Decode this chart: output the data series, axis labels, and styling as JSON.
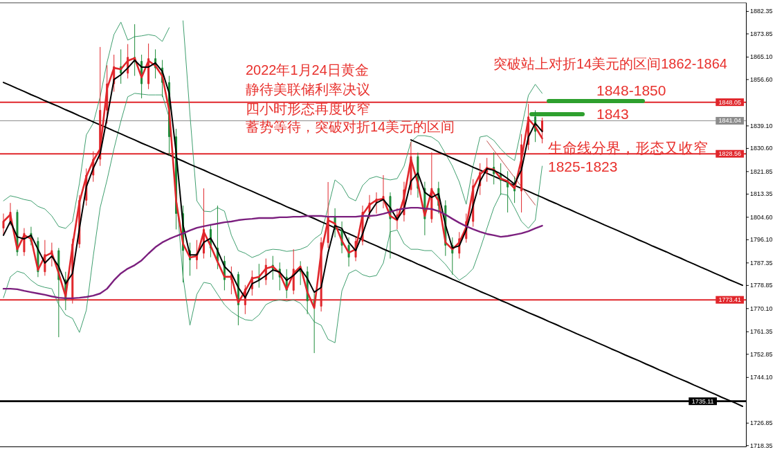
{
  "chart_data": {
    "type": "candlestick",
    "categories": [
      null,
      null,
      null,
      null,
      null,
      null,
      null,
      null,
      null,
      null,
      null,
      null,
      null,
      null,
      null,
      null,
      null,
      null,
      null,
      null,
      null,
      null,
      null,
      null,
      null,
      null,
      null,
      null,
      null,
      null,
      null,
      null,
      null,
      null,
      null,
      null,
      null,
      null,
      null,
      null,
      null,
      null,
      null,
      null,
      null,
      null,
      null,
      null,
      null,
      null,
      null,
      null,
      null,
      null,
      null,
      null,
      null,
      null,
      null,
      null,
      null,
      null,
      null,
      null,
      null,
      null,
      null,
      null,
      null,
      null,
      null,
      null,
      null,
      null,
      null,
      null,
      null,
      null,
      null,
      null,
      null,
      null,
      null,
      null,
      null,
      null,
      null,
      null,
      null,
      null,
      null,
      null,
      null,
      null,
      null,
      null,
      null,
      null,
      null,
      null,
      null,
      null,
      null,
      null,
      null,
      null,
      null,
      null
    ],
    "ohlc": [
      [
        1800.5,
        1806.0,
        1798.0,
        1803.0
      ],
      [
        1803.0,
        1810.0,
        1801.5,
        1806.5
      ],
      [
        1806.5,
        1807.5,
        1790.0,
        1791.5
      ],
      [
        1791.5,
        1800.5,
        1790.0,
        1798.5
      ],
      [
        1798.5,
        1801.0,
        1794.0,
        1795.5
      ],
      [
        1795.5,
        1797.0,
        1782.0,
        1784.0
      ],
      [
        1784.0,
        1796.0,
        1782.5,
        1790.5
      ],
      [
        1790.5,
        1795.0,
        1786.0,
        1792.0
      ],
      [
        1792.0,
        1793.0,
        1759.3,
        1781.0
      ],
      [
        1781.0,
        1784.0,
        1769.5,
        1773.5
      ],
      [
        1773.5,
        1796.5,
        1772.0,
        1794.5
      ],
      [
        1794.5,
        1813.0,
        1793.0,
        1811.0
      ],
      [
        1811.0,
        1823.0,
        1809.0,
        1820.5
      ],
      [
        1820.5,
        1829.5,
        1818.0,
        1826.5
      ],
      [
        1826.5,
        1868.9,
        1824.0,
        1845.0
      ],
      [
        1845.0,
        1862.0,
        1840.0,
        1855.0
      ],
      [
        1855.0,
        1866.0,
        1852.0,
        1861.5
      ],
      [
        1861.5,
        1868.0,
        1855.0,
        1859.0
      ],
      [
        1859.0,
        1870.0,
        1857.0,
        1865.0
      ],
      [
        1865.0,
        1877.5,
        1858.0,
        1863.5
      ],
      [
        1863.5,
        1866.0,
        1849.5,
        1855.0
      ],
      [
        1855.0,
        1870.2,
        1853.0,
        1864.5
      ],
      [
        1864.5,
        1868.0,
        1857.0,
        1861.0
      ],
      [
        1861.0,
        1864.0,
        1850.0,
        1855.5
      ],
      [
        1855.5,
        1858.0,
        1828.0,
        1835.0
      ],
      [
        1835.0,
        1838.0,
        1800.0,
        1806.0
      ],
      [
        1806.0,
        1809.0,
        1780.0,
        1792.0
      ],
      [
        1792.0,
        1795.0,
        1782.5,
        1788.5
      ],
      [
        1788.5,
        1796.0,
        1785.0,
        1791.0
      ],
      [
        1791.0,
        1815.5,
        1789.0,
        1800.0
      ],
      [
        1800.0,
        1802.0,
        1789.5,
        1793.0
      ],
      [
        1793.0,
        1809.0,
        1785.0,
        1788.0
      ],
      [
        1788.0,
        1790.0,
        1777.0,
        1781.0
      ],
      [
        1781.0,
        1786.0,
        1775.5,
        1783.0
      ],
      [
        1783.0,
        1784.0,
        1763.8,
        1771.5
      ],
      [
        1771.5,
        1779.0,
        1768.0,
        1777.5
      ],
      [
        1777.5,
        1784.5,
        1775.0,
        1782.0
      ],
      [
        1782.0,
        1787.0,
        1778.0,
        1781.0
      ],
      [
        1781.0,
        1789.0,
        1779.0,
        1786.5
      ],
      [
        1786.5,
        1790.0,
        1781.0,
        1785.0
      ],
      [
        1785.0,
        1787.5,
        1777.0,
        1782.0
      ],
      [
        1782.0,
        1785.0,
        1774.0,
        1777.0
      ],
      [
        1777.0,
        1792.5,
        1775.5,
        1785.0
      ],
      [
        1785.0,
        1788.0,
        1779.0,
        1784.0
      ],
      [
        1784.0,
        1786.0,
        1768.0,
        1773.0
      ],
      [
        1773.0,
        1776.0,
        1753.3,
        1771.0
      ],
      [
        1771.0,
        1797.0,
        1769.0,
        1795.0
      ],
      [
        1795.0,
        1817.9,
        1793.0,
        1805.0
      ],
      [
        1805.0,
        1808.0,
        1797.0,
        1800.0
      ],
      [
        1800.0,
        1803.0,
        1791.0,
        1794.0
      ],
      [
        1794.0,
        1797.0,
        1786.0,
        1789.5
      ],
      [
        1789.5,
        1797.0,
        1788.0,
        1795.5
      ],
      [
        1795.5,
        1809.0,
        1794.0,
        1806.5
      ],
      [
        1806.5,
        1813.0,
        1804.0,
        1810.0
      ],
      [
        1810.0,
        1814.0,
        1806.0,
        1811.5
      ],
      [
        1811.5,
        1820.5,
        1808.0,
        1812.5
      ],
      [
        1812.5,
        1814.0,
        1789.0,
        1804.0
      ],
      [
        1804.0,
        1808.0,
        1800.0,
        1805.5
      ],
      [
        1805.5,
        1818.0,
        1803.0,
        1815.0
      ],
      [
        1815.0,
        1833.1,
        1813.0,
        1827.5
      ],
      [
        1827.5,
        1829.0,
        1812.0,
        1815.5
      ],
      [
        1815.5,
        1818.0,
        1797.8,
        1804.0
      ],
      [
        1804.0,
        1829.1,
        1802.5,
        1815.5
      ],
      [
        1815.5,
        1818.0,
        1806.0,
        1809.0
      ],
      [
        1809.0,
        1811.0,
        1790.0,
        1794.0
      ],
      [
        1794.0,
        1797.0,
        1782.9,
        1791.0
      ],
      [
        1791.0,
        1799.0,
        1789.0,
        1796.5
      ],
      [
        1796.5,
        1806.0,
        1795.0,
        1803.0
      ],
      [
        1803.0,
        1819.0,
        1801.0,
        1816.5
      ],
      [
        1816.5,
        1825.0,
        1813.0,
        1821.5
      ],
      [
        1821.5,
        1827.0,
        1818.0,
        1823.5
      ],
      [
        1823.5,
        1829.1,
        1817.0,
        1821.0
      ],
      [
        1821.0,
        1825.0,
        1813.0,
        1818.5
      ],
      [
        1818.5,
        1822.0,
        1806.4,
        1816.0
      ],
      [
        1816.0,
        1820.0,
        1810.0,
        1814.5
      ],
      [
        1814.5,
        1836.0,
        1806.4,
        1832.0
      ],
      [
        1832.0,
        1847.4,
        1830.0,
        1842.5
      ],
      [
        1842.5,
        1845.0,
        1833.0,
        1837.0
      ],
      [
        1837.0,
        1842.2,
        1832.5,
        1841.0
      ],
      null,
      null,
      null,
      null,
      null,
      null,
      null,
      null,
      null,
      null,
      null,
      null,
      null,
      null,
      null,
      null,
      null,
      null,
      null,
      null,
      null,
      null,
      null,
      null,
      null,
      null,
      null,
      null,
      null
    ],
    "series": [
      {
        "type": "line",
        "color": "#e0262b",
        "values": [
          1803.0,
          1805.6,
          1792.5,
          1797.8,
          1796.5,
          1784.7,
          1789.9,
          1791.2,
          1783.4,
          1774.7,
          1793.8,
          1810.3,
          1820.0,
          1826.0,
          1830.4,
          1853.2,
          1861.0,
          1860.5,
          1863.7,
          1864.7,
          1857.4,
          1863.7,
          1861.8,
          1857.9,
          1844.8,
          1810.8,
          1794.6,
          1789.4,
          1789.9,
          1799.1,
          1793.8,
          1787.8,
          1782.1,
          1782.1,
          1772.4,
          1776.8,
          1781.5,
          1782.1,
          1785.2,
          1786.0,
          1783.4,
          1777.4,
          1783.4,
          1786.0,
          1776.3,
          1770.3,
          1791.2,
          1803.5,
          1802.2,
          1795.7,
          1791.2,
          1792.5,
          1805.6,
          1809.3,
          1811.1,
          1811.6,
          1805.1,
          1803.5,
          1812.1,
          1826.5,
          1817.4,
          1805.1,
          1814.8,
          1810.8,
          1795.1,
          1792.5,
          1795.1,
          1800.9,
          1815.5,
          1820.8,
          1823.1,
          1822.6,
          1819.2,
          1818.2,
          1815.5,
          1826.5,
          1841.7,
          1838.8,
          1834.4,
          null,
          null,
          null,
          null,
          null,
          null,
          null,
          null,
          null,
          null,
          null,
          null,
          null,
          null,
          null,
          null,
          null,
          null,
          null,
          null,
          null,
          null,
          null,
          null,
          null,
          null,
          null,
          null,
          null
        ]
      },
      {
        "type": "line",
        "color": "#000000",
        "values": [
          1797.8,
          1803.0,
          1797.2,
          1796.4,
          1797.8,
          1792.5,
          1787.3,
          1789.9,
          1786.0,
          1779.5,
          1783.4,
          1800.4,
          1816.1,
          1823.1,
          1828.6,
          1842.2,
          1856.6,
          1858.4,
          1861.0,
          1863.9,
          1861.3,
          1861.3,
          1862.9,
          1859.7,
          1851.4,
          1829.1,
          1801.7,
          1790.4,
          1790.4,
          1795.1,
          1796.7,
          1792.0,
          1786.0,
          1783.4,
          1778.1,
          1774.2,
          1779.5,
          1780.8,
          1782.6,
          1784.7,
          1783.9,
          1780.8,
          1782.6,
          1785.2,
          1781.5,
          1776.3,
          1778.1,
          1791.2,
          1801.4,
          1800.4,
          1795.1,
          1792.0,
          1798.3,
          1806.1,
          1810.0,
          1811.3,
          1808.2,
          1803.8,
          1807.7,
          1818.2,
          1821.3,
          1814.0,
          1812.1,
          1813.5,
          1801.7,
          1793.0,
          1793.8,
          1799.8,
          1809.0,
          1818.2,
          1822.9,
          1822.3,
          1821.0,
          1819.2,
          1817.1,
          1822.6,
          1834.9,
          1840.1,
          1837.0,
          null,
          null,
          null,
          null,
          null,
          null,
          null,
          null,
          null,
          null,
          null,
          null,
          null,
          null,
          null,
          null,
          null,
          null,
          null,
          null,
          null,
          null,
          null,
          null,
          null,
          null,
          null,
          null,
          null
        ]
      },
      {
        "type": "line",
        "color": "#7b1f7e",
        "values": [
          1777.6,
          1777.6,
          1777.4,
          1776.8,
          1776.3,
          1775.8,
          1775.3,
          1774.7,
          1774.2,
          1774.0,
          1774.0,
          1774.2,
          1774.5,
          1775.0,
          1775.8,
          1777.6,
          1780.8,
          1783.4,
          1785.2,
          1786.5,
          1788.3,
          1790.9,
          1793.3,
          1795.1,
          1796.4,
          1797.5,
          1798.5,
          1799.6,
          1800.6,
          1801.2,
          1801.7,
          1802.2,
          1802.7,
          1803.0,
          1803.5,
          1803.8,
          1804.0,
          1804.3,
          1804.3,
          1804.3,
          1804.6,
          1804.6,
          1804.8,
          1804.8,
          1805.1,
          1805.1,
          1805.1,
          1804.8,
          1804.8,
          1804.8,
          1804.8,
          1804.8,
          1805.1,
          1805.1,
          1805.3,
          1805.9,
          1806.6,
          1807.4,
          1807.9,
          1808.2,
          1808.2,
          1807.9,
          1807.7,
          1806.9,
          1805.6,
          1804.0,
          1802.5,
          1801.2,
          1800.1,
          1799.1,
          1798.3,
          1797.8,
          1797.2,
          1797.5,
          1798.0,
          1798.5,
          1799.3,
          1800.4,
          1801.4,
          null,
          null,
          null,
          null,
          null,
          null,
          null,
          null,
          null,
          null,
          null,
          null,
          null,
          null,
          null,
          null,
          null,
          null,
          null,
          null,
          null,
          null,
          null,
          null,
          null,
          null,
          null,
          null,
          null
        ]
      },
      {
        "type": "line",
        "color": "#3f9f6f",
        "values": [
          1810.8,
          1812.7,
          1812.1,
          1811.3,
          1810.8,
          1808.7,
          1807.7,
          1805.1,
          1801.1,
          1800.4,
          1803.0,
          1817.4,
          1835.7,
          1840.1,
          1850.1,
          1863.1,
          1873.6,
          1878.3,
          1871.5,
          1872.8,
          1873.1,
          1873.6,
          1873.1,
          1871.0,
          1876.2,
          null,
          1878.8,
          1843.5,
          1810.8,
          1806.9,
          1806.7,
          1808.2,
          1806.9,
          1797.8,
          1792.0,
          1791.0,
          1789.4,
          1790.4,
          1792.0,
          1792.5,
          1792.3,
          1791.7,
          1792.0,
          1792.5,
          1793.6,
          1796.4,
          1798.3,
          1808.2,
          1818.7,
          1816.6,
          1812.1,
          1810.8,
          1816.6,
          1819.2,
          1820.0,
          1819.2,
          1818.7,
          1819.2,
          1823.9,
          1833.1,
          1835.4,
          1835.4,
          1834.9,
          1833.1,
          1828.6,
          1823.9,
          1817.9,
          1809.5,
          1823.9,
          1834.9,
          1835.4,
          1833.6,
          1830.4,
          1827.8,
          1826.0,
          1838.3,
          1850.6,
          1854.8,
          1851.4,
          null,
          null,
          null,
          null,
          null,
          null,
          null,
          null,
          null,
          null,
          null,
          null,
          null,
          null,
          null,
          null,
          null,
          null,
          null,
          null,
          null,
          null,
          null,
          null,
          null,
          null,
          null,
          null,
          null
        ]
      },
      {
        "type": "line",
        "color": "#3f9f6f",
        "values": [
          1774.2,
          1782.1,
          1784.2,
          1783.4,
          1780.8,
          1778.9,
          1778.1,
          1777.6,
          1771.6,
          1767.7,
          1766.4,
          1761.1,
          1769.5,
          1789.9,
          1808.2,
          1818.7,
          1830.4,
          1840.9,
          1850.1,
          1851.4,
          1851.1,
          1850.8,
          1850.8,
          1850.8,
          1842.2,
          1813.5,
          1782.1,
          1763.8,
          1775.5,
          1780.0,
          1779.5,
          1775.5,
          1771.6,
          1769.0,
          1767.2,
          1765.9,
          1765.6,
          1767.7,
          1771.6,
          1772.9,
          1773.4,
          1772.9,
          1773.4,
          1772.1,
          1769.0,
          1765.1,
          1763.8,
          1758.5,
          1757.2,
          1776.8,
          1783.4,
          1784.7,
          1782.9,
          1782.1,
          1782.6,
          1787.3,
          1799.1,
          1799.8,
          1794.6,
          1792.5,
          1792.5,
          1792.0,
          1792.0,
          1789.4,
          1786.8,
          1783.4,
          1780.8,
          1782.6,
          1785.2,
          1792.5,
          1800.4,
          1808.2,
          1813.5,
          1812.9,
          1808.2,
          1803.0,
          1800.4,
          1803.5,
          1823.9,
          null,
          null,
          null,
          null,
          null,
          null,
          null,
          null,
          null,
          null,
          null,
          null,
          null,
          null,
          null,
          null,
          null,
          null,
          null,
          null,
          null,
          null,
          null,
          null,
          null,
          null,
          null,
          null,
          null
        ]
      },
      {
        "type": "line",
        "color": "#000000",
        "values": [
          1855.5,
          1854.4,
          1853.2,
          1852.1,
          1850.9,
          1849.8,
          1848.6,
          1847.5,
          1846.4,
          1845.2,
          1844.1,
          1842.9,
          1841.8,
          1840.6,
          1839.5,
          1838.4,
          1837.2,
          1836.1,
          1834.9,
          1833.8,
          1832.6,
          1831.5,
          1830.4,
          1829.2,
          1828.1,
          1826.9,
          1825.8,
          1824.6,
          1823.5,
          1822.4,
          1821.2,
          1820.1,
          1818.9,
          1817.8,
          1816.6,
          1815.5,
          1814.4,
          1813.2,
          1812.1,
          1810.9,
          1809.8,
          1808.6,
          1807.5,
          1806.4,
          1805.2,
          1804.1,
          1802.9,
          1801.8,
          1800.6,
          1799.5,
          1798.4,
          1797.2,
          1796.1,
          1794.9,
          1793.8,
          1792.6,
          1791.5,
          1790.4,
          1789.2,
          1788.1,
          1786.9,
          1785.8,
          1784.6,
          1783.5,
          1782.4,
          1781.2,
          1780.1,
          1778.9,
          1777.8,
          1776.6,
          1775.5,
          1774.4,
          1773.2,
          1772.1,
          1770.9,
          1769.8,
          1768.6,
          1767.5,
          1766.4,
          1765.2,
          1764.1,
          1762.9,
          1761.8,
          1760.6,
          1759.5,
          1758.4,
          1757.2,
          1756.1,
          1754.9,
          1753.8,
          1752.6,
          1751.5,
          1750.4,
          1749.2,
          1748.1,
          1746.9,
          1745.8,
          1744.6,
          1743.5,
          1742.4,
          1741.2,
          1740.1,
          1738.9,
          1737.8,
          1736.6,
          1735.5,
          1734.4,
          1733.2
        ]
      },
      {
        "type": "line",
        "color": "#000000",
        "values": [
          null,
          null,
          null,
          null,
          null,
          null,
          null,
          null,
          null,
          null,
          null,
          null,
          null,
          null,
          null,
          null,
          null,
          null,
          null,
          null,
          null,
          null,
          null,
          null,
          null,
          null,
          null,
          null,
          null,
          null,
          null,
          null,
          null,
          null,
          null,
          null,
          null,
          null,
          null,
          null,
          null,
          null,
          null,
          null,
          null,
          null,
          null,
          null,
          null,
          null,
          null,
          null,
          null,
          null,
          null,
          null,
          null,
          null,
          null,
          1833.8,
          1832.7,
          1831.5,
          1830.4,
          1829.2,
          1828.1,
          1826.9,
          1825.8,
          1824.7,
          1823.5,
          1822.4,
          1821.2,
          1820.1,
          1818.9,
          1817.8,
          1816.6,
          1815.5,
          1814.4,
          1813.2,
          1812.1,
          1810.9,
          1809.8,
          1808.6,
          1807.5,
          1806.3,
          1805.2,
          1804.0,
          1802.9,
          1801.7,
          1800.6,
          1799.5,
          1798.3,
          1797.2,
          1796.0,
          1794.9,
          1793.7,
          1792.6,
          1791.5,
          1790.3,
          1789.2,
          1788.0,
          1786.9,
          1785.7,
          1784.6,
          1783.4,
          1782.3,
          1781.1,
          1780.0,
          1778.9
        ]
      },
      {
        "type": "line",
        "color": "#c0504d",
        "values": [
          null,
          null,
          null,
          null,
          null,
          null,
          null,
          null,
          null,
          null,
          null,
          null,
          null,
          null,
          null,
          null,
          null,
          null,
          null,
          null,
          null,
          null,
          null,
          null,
          null,
          null,
          null,
          null,
          null,
          null,
          null,
          null,
          null,
          null,
          null,
          null,
          null,
          null,
          null,
          null,
          null,
          null,
          null,
          null,
          null,
          null,
          null,
          null,
          null,
          null,
          null,
          null,
          null,
          null,
          null,
          null,
          null,
          null,
          null,
          null,
          null,
          null,
          null,
          null,
          null,
          null,
          null,
          null,
          null,
          null,
          1833.4,
          1829.9,
          1826.5,
          1823.0,
          1819.6,
          1816.1,
          1812.6,
          1809.2,
          null,
          null,
          null,
          null,
          null,
          null,
          null,
          null,
          null,
          null,
          null,
          null,
          null,
          null,
          null,
          null,
          null,
          null,
          null,
          null,
          null,
          null,
          null,
          null,
          null,
          null,
          null,
          null,
          null,
          null
        ]
      }
    ],
    "ylim": [
      1717.9,
      1885.6
    ],
    "yticks": [
      1882.35,
      1873.85,
      {
        "value": 1865.1,
        "label": "1865.10"
      },
      {
        "value": 1856.6,
        "label": "1856.60"
      },
      {
        "value": 1839.1,
        "label": "1839.10"
      },
      {
        "value": 1830.6,
        "label": "1830.60"
      },
      1821.85,
      1813.35,
      {
        "value": 1804.6,
        "label": "1804.60"
      },
      {
        "value": 1796.1,
        "label": "1796.10"
      },
      1787.35,
      1778.85,
      {
        "value": 1770.1,
        "label": "1770.10"
      },
      1761.35,
      1752.85,
      {
        "value": 1744.1,
        "label": "1744.10"
      },
      1726.85,
      1718.35
    ],
    "tick_labels": "y",
    "ref_lines": [
      {
        "axis": "y",
        "value": 1848.05,
        "label": "1848.05",
        "color": "#e0262b"
      },
      {
        "axis": "y",
        "value": 1841.04,
        "label": "1841.04",
        "color": "#8c8c8c"
      },
      {
        "axis": "y",
        "value": 1828.56,
        "label": "1828.56",
        "color": "#e0262b"
      },
      {
        "axis": "y",
        "value": 1773.41,
        "label": "1773.41",
        "color": "#e0262b"
      },
      {
        "axis": "y",
        "value": 1735.11,
        "label": "1735.11",
        "color": "#000000"
      }
    ],
    "annotations": [
      "2022年1月24日黄金",
      "静待美联储利率决议",
      "四小时形态再度收窄",
      "蓄势等待，突破对折14美元的区间",
      "突破站上对折14美元的区间1862-1864",
      {
        "text": "1848-1850",
        "y": 1848.5
      },
      "1843",
      "生命线分界，形态又收窄",
      "1825-1823"
    ]
  }
}
